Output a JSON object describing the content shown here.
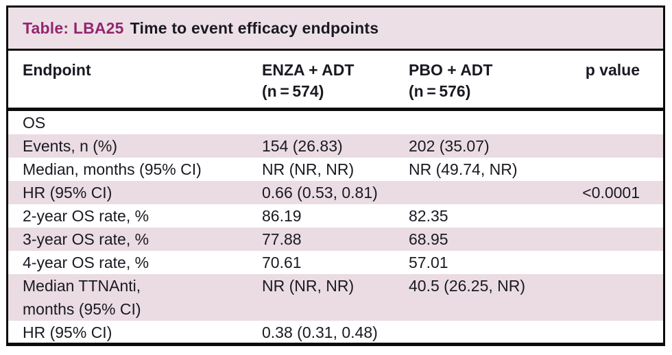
{
  "title": {
    "prefix": "Table: LBA25",
    "text": "Time to event efficacy endpoints"
  },
  "colors": {
    "accent": "#93266e",
    "title_bar_background": "#ece0e6",
    "shaded_row_background": "#eadce2",
    "border": "#0b0b0b",
    "text": "#191922"
  },
  "columns": [
    {
      "label": "Endpoint",
      "sub": ""
    },
    {
      "label": "ENZA + ADT",
      "sub": "(n = 574)"
    },
    {
      "label": "PBO + ADT",
      "sub": "(n = 576)"
    },
    {
      "label": "p value",
      "sub": ""
    }
  ],
  "rows": [
    {
      "endpoint": "OS",
      "enza": "",
      "pbo": "",
      "p": ""
    },
    {
      "endpoint": "Events, n (%)",
      "enza": "154 (26.83)",
      "pbo": "202 (35.07)",
      "p": ""
    },
    {
      "endpoint": "Median, months (95% CI)",
      "enza": "NR (NR, NR)",
      "pbo": "NR (49.74, NR)",
      "p": ""
    },
    {
      "endpoint": "HR (95% CI)",
      "enza": "0.66 (0.53, 0.81)",
      "pbo": "",
      "p": "<0.0001"
    },
    {
      "endpoint": "2-year OS rate, %",
      "enza": "86.19",
      "pbo": "82.35",
      "p": ""
    },
    {
      "endpoint": "3-year OS rate, %",
      "enza": "77.88",
      "pbo": "68.95",
      "p": ""
    },
    {
      "endpoint": "4-year OS rate, %",
      "enza": "70.61",
      "pbo": "57.01",
      "p": ""
    },
    {
      "endpoint": "Median TTNAnti,\nmonths (95% CI)",
      "enza": "NR (NR, NR)",
      "pbo": "40.5 (26.25, NR)",
      "p": ""
    },
    {
      "endpoint": "HR (95% CI)",
      "enza": "0.38 (0.31, 0.48)",
      "pbo": "",
      "p": ""
    }
  ]
}
